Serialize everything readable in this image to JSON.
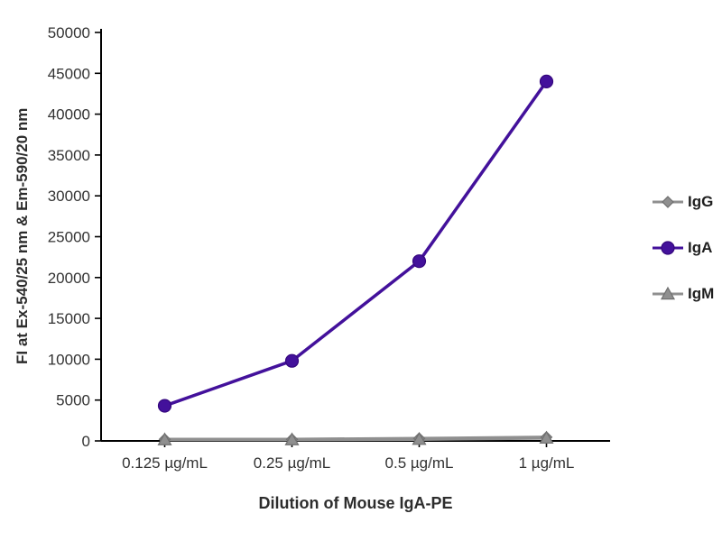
{
  "chart_data": {
    "type": "line",
    "categories": [
      "0.125 µg/mL",
      "0.25 µg/mL",
      "0.5 µg/mL",
      "1 µg/mL"
    ],
    "series": [
      {
        "name": "IgG",
        "marker": "diamond",
        "color": "#8f8f8f",
        "edge": "#6f6f6f",
        "values": [
          200,
          200,
          300,
          450
        ]
      },
      {
        "name": "IgA",
        "marker": "circle",
        "color": "#43119b",
        "edge": "#34067d",
        "values": [
          4300,
          9800,
          22000,
          44000
        ]
      },
      {
        "name": "IgM",
        "marker": "triangle",
        "color": "#8f8f8f",
        "edge": "#6f6f6f",
        "values": [
          150,
          150,
          200,
          350
        ]
      }
    ],
    "title": "",
    "xlabel": "Dilution of Mouse IgA-PE",
    "ylabel": "FI at Ex-540/25 nm & Em-590/20 nm",
    "ylim": [
      0,
      50000
    ],
    "ytick_step": 5000,
    "grid": false,
    "legend_position": "right",
    "axis_color": "#000000"
  }
}
